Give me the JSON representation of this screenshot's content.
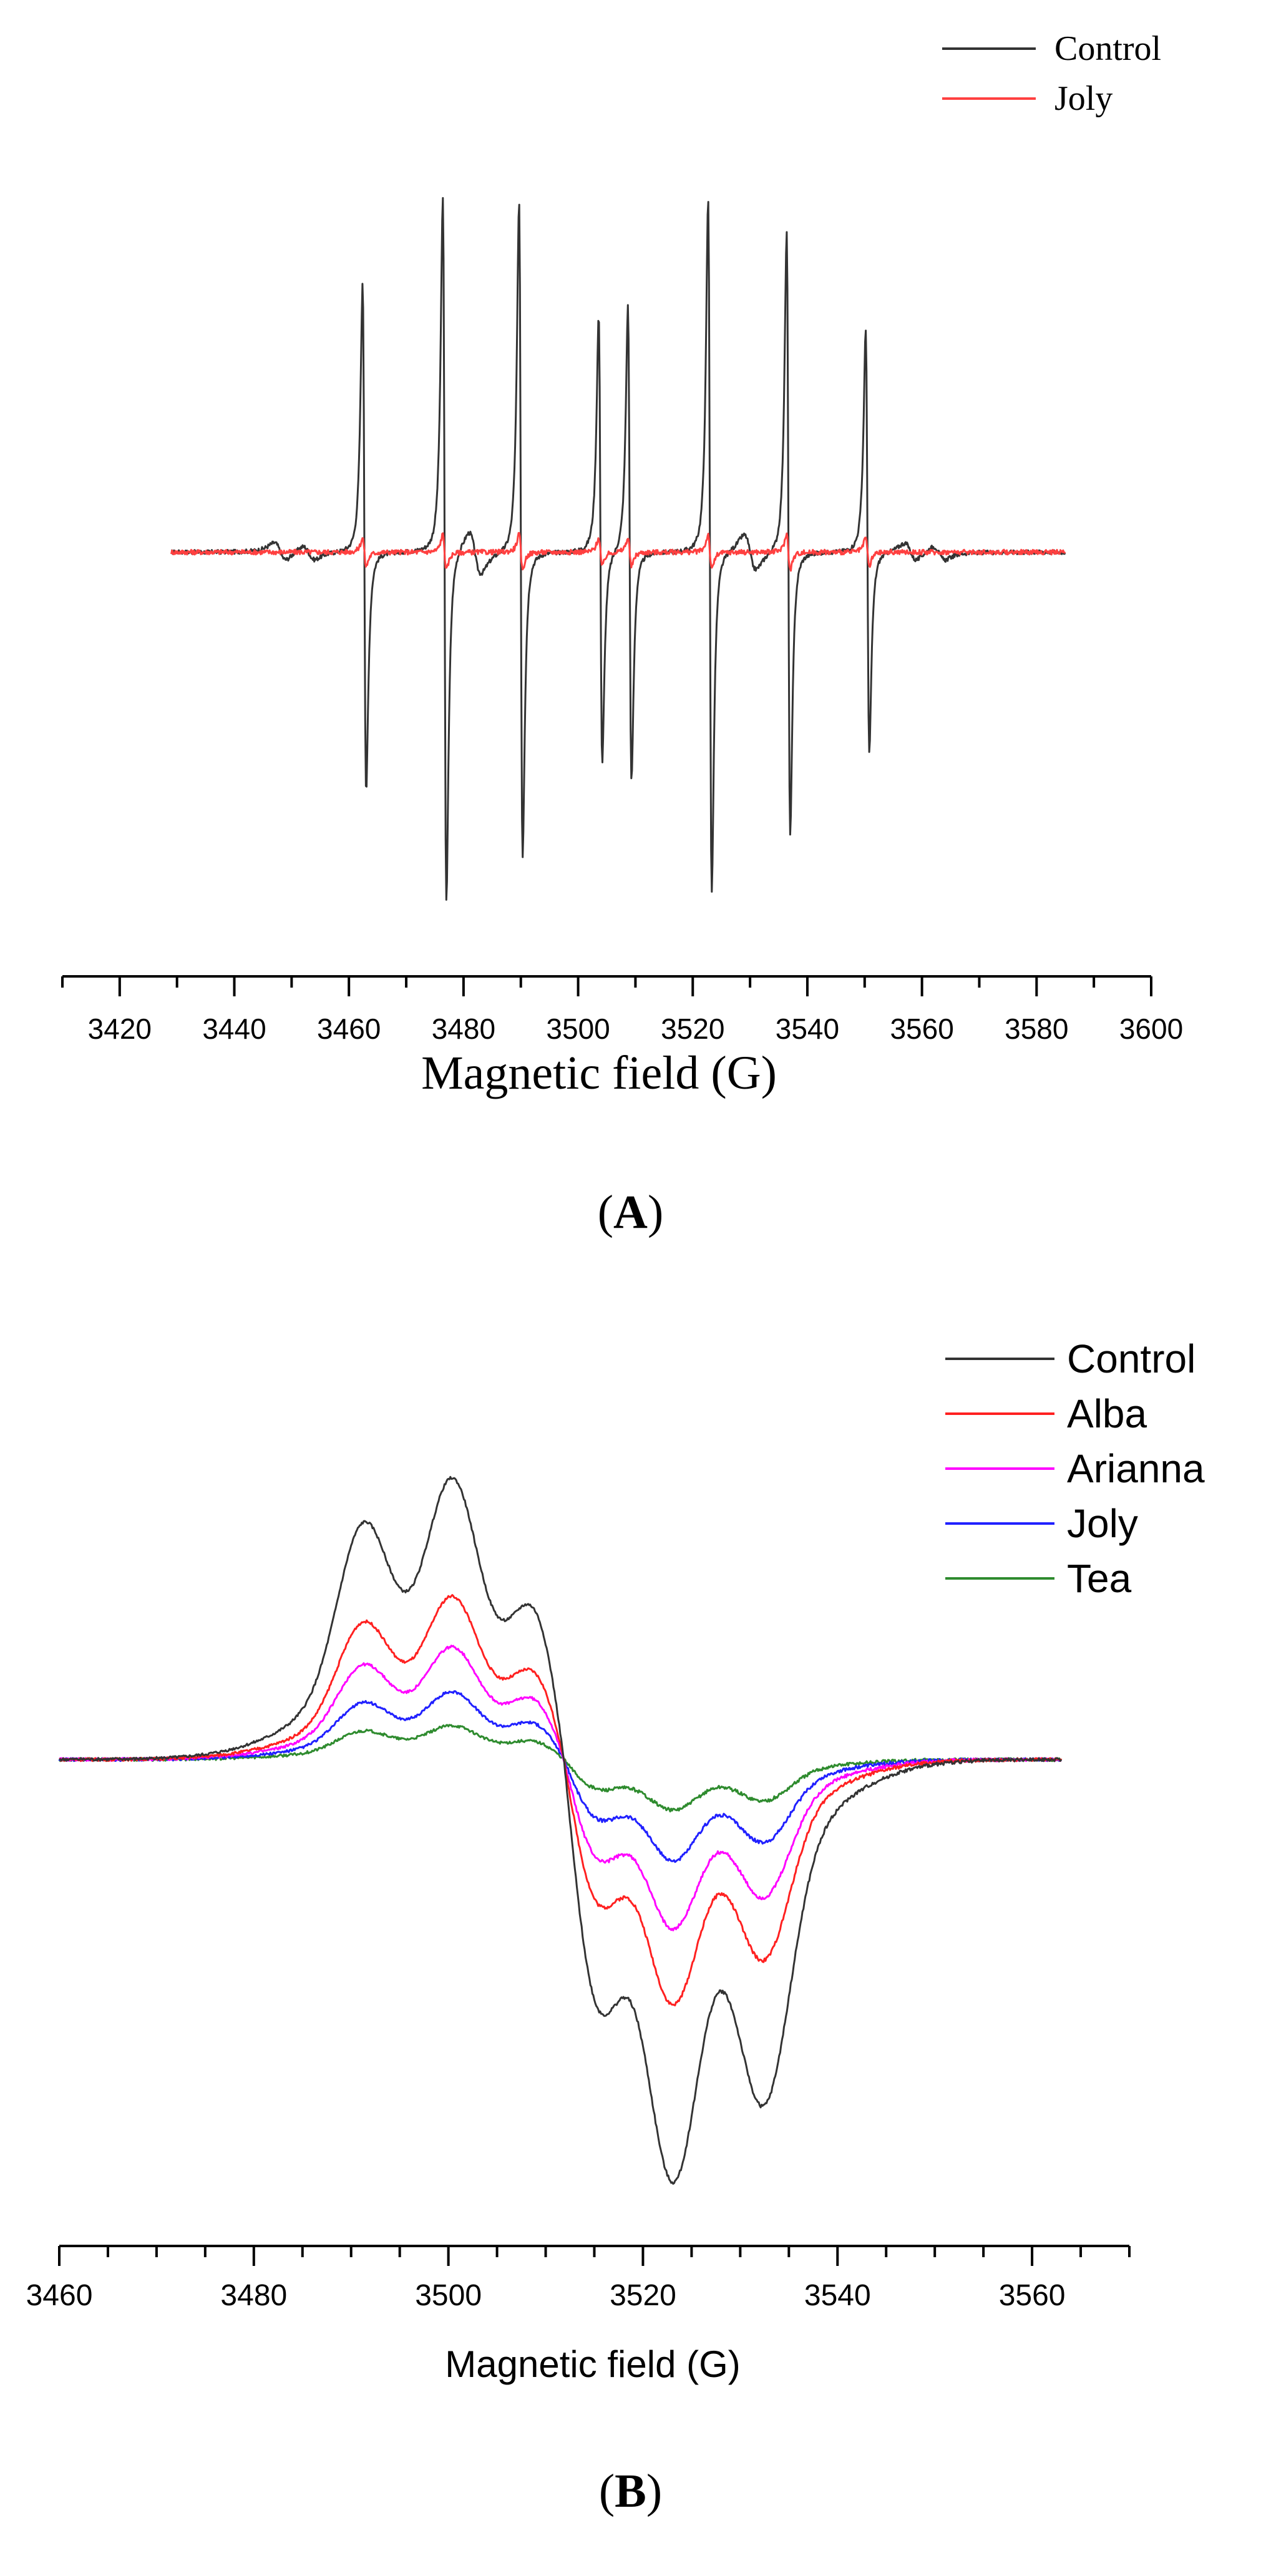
{
  "chart_data": [
    {
      "type": "line",
      "panel_label": "A",
      "xlabel": "Magnetic field (G)",
      "ylabel": "",
      "xlim": [
        3410,
        3600
      ],
      "x_ticks": [
        3420,
        3440,
        3460,
        3480,
        3500,
        3520,
        3540,
        3560,
        3580,
        3600
      ],
      "x_range": [
        3429,
        3585
      ],
      "legend_position": "top-right",
      "series": [
        {
          "name": "Control",
          "color": "#333333",
          "peaks": [
            {
              "x": 3462.7,
              "pos": 0.76,
              "neg": 0.68
            },
            {
              "x": 3476.7,
              "pos": 1.0,
              "neg": 1.0
            },
            {
              "x": 3490.0,
              "pos": 1.0,
              "neg": 0.86
            },
            {
              "x": 3503.9,
              "pos": 0.67,
              "neg": 0.6
            },
            {
              "x": 3509.0,
              "pos": 0.7,
              "neg": 0.65
            },
            {
              "x": 3523.0,
              "pos": 1.0,
              "neg": 0.97
            },
            {
              "x": 3536.7,
              "pos": 0.91,
              "neg": 0.8
            },
            {
              "x": 3550.5,
              "pos": 0.63,
              "neg": 0.57
            }
          ],
          "minor_peaks": [
            {
              "x": 3448,
              "amp": 0.025
            },
            {
              "x": 3453,
              "amp": 0.02
            },
            {
              "x": 3482,
              "amp": 0.06
            },
            {
              "x": 3530,
              "amp": 0.05
            },
            {
              "x": 3558,
              "amp": 0.025
            },
            {
              "x": 3563,
              "amp": 0.02
            }
          ]
        },
        {
          "name": "Joly",
          "color": "#ff4040",
          "peaks": [
            {
              "x": 3462.7,
              "pos": 0.04,
              "neg": 0.04
            },
            {
              "x": 3476.7,
              "pos": 0.05,
              "neg": 0.05
            },
            {
              "x": 3490.0,
              "pos": 0.05,
              "neg": 0.05
            },
            {
              "x": 3503.9,
              "pos": 0.04,
              "neg": 0.04
            },
            {
              "x": 3509.0,
              "pos": 0.04,
              "neg": 0.04
            },
            {
              "x": 3523.0,
              "pos": 0.05,
              "neg": 0.05
            },
            {
              "x": 3536.7,
              "pos": 0.05,
              "neg": 0.05
            },
            {
              "x": 3550.5,
              "pos": 0.04,
              "neg": 0.04
            }
          ],
          "minor_peaks": []
        }
      ]
    },
    {
      "type": "line",
      "panel_label": "B",
      "xlabel": "Magnetic field (G)",
      "ylabel": "",
      "xlim": [
        3460,
        3570
      ],
      "x_ticks": [
        3460,
        3480,
        3500,
        3520,
        3540,
        3560
      ],
      "x_range": [
        3460,
        3563
      ],
      "legend_position": "top-right",
      "center": 3512,
      "series": [
        {
          "name": "Control",
          "color": "#333333",
          "scale": 1.0
        },
        {
          "name": "Alba",
          "color": "#ff2020",
          "scale": 0.58
        },
        {
          "name": "Arianna",
          "color": "#ff00ff",
          "scale": 0.4
        },
        {
          "name": "Joly",
          "color": "#2020ff",
          "scale": 0.24
        },
        {
          "name": "Tea",
          "color": "#2e8b2e",
          "scale": 0.12
        }
      ],
      "positive_lobes": [
        {
          "x": 3491.2,
          "amp": 0.68
        },
        {
          "x": 3500.5,
          "amp": 0.78
        },
        {
          "x": 3509.0,
          "amp": 0.6
        }
      ],
      "negative_lobes": [
        {
          "x": 3515.2,
          "amp": 0.7
        },
        {
          "x": 3523.0,
          "amp": 0.9
        },
        {
          "x": 3532.5,
          "amp": 0.75
        }
      ]
    }
  ]
}
